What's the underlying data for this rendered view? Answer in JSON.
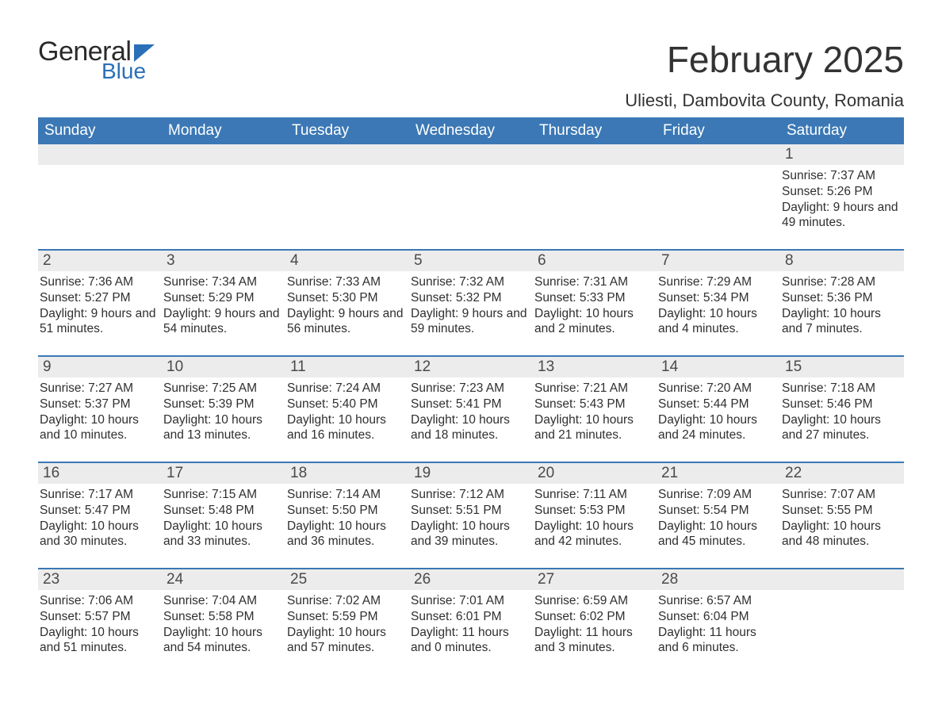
{
  "brand": {
    "text1": "General",
    "text2": "Blue",
    "accent_color": "#2a70b8"
  },
  "title": "February 2025",
  "location": "Uliesti, Dambovita County, Romania",
  "colors": {
    "header_bg": "#3b78b5",
    "header_text": "#ffffff",
    "daynum_bg": "#ececec",
    "border": "#3b78b5",
    "body_text": "#333333"
  },
  "fonts": {
    "title_size_pt": 34,
    "location_size_pt": 17,
    "header_size_pt": 14,
    "cell_size_pt": 12
  },
  "day_names": [
    "Sunday",
    "Monday",
    "Tuesday",
    "Wednesday",
    "Thursday",
    "Friday",
    "Saturday"
  ],
  "weeks": [
    [
      {
        "day": "",
        "lines": []
      },
      {
        "day": "",
        "lines": []
      },
      {
        "day": "",
        "lines": []
      },
      {
        "day": "",
        "lines": []
      },
      {
        "day": "",
        "lines": []
      },
      {
        "day": "",
        "lines": []
      },
      {
        "day": "1",
        "lines": [
          "Sunrise: 7:37 AM",
          "Sunset: 5:26 PM",
          "Daylight: 9 hours and 49 minutes."
        ]
      }
    ],
    [
      {
        "day": "2",
        "lines": [
          "Sunrise: 7:36 AM",
          "Sunset: 5:27 PM",
          "Daylight: 9 hours and 51 minutes."
        ]
      },
      {
        "day": "3",
        "lines": [
          "Sunrise: 7:34 AM",
          "Sunset: 5:29 PM",
          "Daylight: 9 hours and 54 minutes."
        ]
      },
      {
        "day": "4",
        "lines": [
          "Sunrise: 7:33 AM",
          "Sunset: 5:30 PM",
          "Daylight: 9 hours and 56 minutes."
        ]
      },
      {
        "day": "5",
        "lines": [
          "Sunrise: 7:32 AM",
          "Sunset: 5:32 PM",
          "Daylight: 9 hours and 59 minutes."
        ]
      },
      {
        "day": "6",
        "lines": [
          "Sunrise: 7:31 AM",
          "Sunset: 5:33 PM",
          "Daylight: 10 hours and 2 minutes."
        ]
      },
      {
        "day": "7",
        "lines": [
          "Sunrise: 7:29 AM",
          "Sunset: 5:34 PM",
          "Daylight: 10 hours and 4 minutes."
        ]
      },
      {
        "day": "8",
        "lines": [
          "Sunrise: 7:28 AM",
          "Sunset: 5:36 PM",
          "Daylight: 10 hours and 7 minutes."
        ]
      }
    ],
    [
      {
        "day": "9",
        "lines": [
          "Sunrise: 7:27 AM",
          "Sunset: 5:37 PM",
          "Daylight: 10 hours and 10 minutes."
        ]
      },
      {
        "day": "10",
        "lines": [
          "Sunrise: 7:25 AM",
          "Sunset: 5:39 PM",
          "Daylight: 10 hours and 13 minutes."
        ]
      },
      {
        "day": "11",
        "lines": [
          "Sunrise: 7:24 AM",
          "Sunset: 5:40 PM",
          "Daylight: 10 hours and 16 minutes."
        ]
      },
      {
        "day": "12",
        "lines": [
          "Sunrise: 7:23 AM",
          "Sunset: 5:41 PM",
          "Daylight: 10 hours and 18 minutes."
        ]
      },
      {
        "day": "13",
        "lines": [
          "Sunrise: 7:21 AM",
          "Sunset: 5:43 PM",
          "Daylight: 10 hours and 21 minutes."
        ]
      },
      {
        "day": "14",
        "lines": [
          "Sunrise: 7:20 AM",
          "Sunset: 5:44 PM",
          "Daylight: 10 hours and 24 minutes."
        ]
      },
      {
        "day": "15",
        "lines": [
          "Sunrise: 7:18 AM",
          "Sunset: 5:46 PM",
          "Daylight: 10 hours and 27 minutes."
        ]
      }
    ],
    [
      {
        "day": "16",
        "lines": [
          "Sunrise: 7:17 AM",
          "Sunset: 5:47 PM",
          "Daylight: 10 hours and 30 minutes."
        ]
      },
      {
        "day": "17",
        "lines": [
          "Sunrise: 7:15 AM",
          "Sunset: 5:48 PM",
          "Daylight: 10 hours and 33 minutes."
        ]
      },
      {
        "day": "18",
        "lines": [
          "Sunrise: 7:14 AM",
          "Sunset: 5:50 PM",
          "Daylight: 10 hours and 36 minutes."
        ]
      },
      {
        "day": "19",
        "lines": [
          "Sunrise: 7:12 AM",
          "Sunset: 5:51 PM",
          "Daylight: 10 hours and 39 minutes."
        ]
      },
      {
        "day": "20",
        "lines": [
          "Sunrise: 7:11 AM",
          "Sunset: 5:53 PM",
          "Daylight: 10 hours and 42 minutes."
        ]
      },
      {
        "day": "21",
        "lines": [
          "Sunrise: 7:09 AM",
          "Sunset: 5:54 PM",
          "Daylight: 10 hours and 45 minutes."
        ]
      },
      {
        "day": "22",
        "lines": [
          "Sunrise: 7:07 AM",
          "Sunset: 5:55 PM",
          "Daylight: 10 hours and 48 minutes."
        ]
      }
    ],
    [
      {
        "day": "23",
        "lines": [
          "Sunrise: 7:06 AM",
          "Sunset: 5:57 PM",
          "Daylight: 10 hours and 51 minutes."
        ]
      },
      {
        "day": "24",
        "lines": [
          "Sunrise: 7:04 AM",
          "Sunset: 5:58 PM",
          "Daylight: 10 hours and 54 minutes."
        ]
      },
      {
        "day": "25",
        "lines": [
          "Sunrise: 7:02 AM",
          "Sunset: 5:59 PM",
          "Daylight: 10 hours and 57 minutes."
        ]
      },
      {
        "day": "26",
        "lines": [
          "Sunrise: 7:01 AM",
          "Sunset: 6:01 PM",
          "Daylight: 11 hours and 0 minutes."
        ]
      },
      {
        "day": "27",
        "lines": [
          "Sunrise: 6:59 AM",
          "Sunset: 6:02 PM",
          "Daylight: 11 hours and 3 minutes."
        ]
      },
      {
        "day": "28",
        "lines": [
          "Sunrise: 6:57 AM",
          "Sunset: 6:04 PM",
          "Daylight: 11 hours and 6 minutes."
        ]
      },
      {
        "day": "",
        "lines": []
      }
    ]
  ]
}
